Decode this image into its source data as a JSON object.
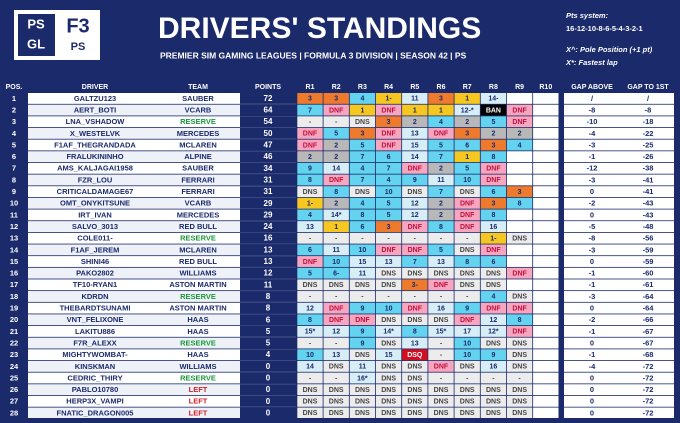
{
  "header": {
    "logo_left": [
      "PS",
      "GL"
    ],
    "logo_right": [
      "F3",
      "PS"
    ],
    "title": "DRIVERS' STANDINGS",
    "subtitle": "PREMIER SIM GAMING LEAGUES | FORMULA 3 DIVISION | SEASON 42 | PS",
    "pts_label": "Pts system:",
    "pts_system": "16-12-10-8-6-5-4-3-2-1",
    "notes": [
      "X^: Pole Position (+1 pt)",
      "X*: Fastest lap"
    ]
  },
  "table": {
    "columns": [
      "POS.",
      "DRIVER",
      "TEAM",
      "POINTS",
      "R1",
      "R2",
      "R3",
      "R4",
      "R5",
      "R6",
      "R7",
      "R8",
      "R9",
      "R10",
      "GAP ABOVE",
      "GAP TO 1ST"
    ],
    "rows": [
      {
        "pos": 1,
        "driver": "GALTZU123",
        "team": "SAUBER",
        "points": 72,
        "races": [
          "3",
          "3",
          "4",
          "1-",
          "11",
          "3",
          "1",
          "14-"
        ],
        "gap_above": "/",
        "gap_first": "/"
      },
      {
        "pos": 2,
        "driver": "AERT_BOTI",
        "team": "VCARB",
        "points": 64,
        "races": [
          "7",
          "DNF",
          "1",
          "DNF",
          "1",
          "1",
          "12-*",
          "BAN",
          "DNF"
        ],
        "gap_above": "-8",
        "gap_first": "-8"
      },
      {
        "pos": 3,
        "driver": "LNA_VSHADOW",
        "team": "RESERVE",
        "points": 54,
        "races": [
          "-",
          "-",
          "DNS",
          "3",
          "2",
          "4",
          "2",
          "5",
          "DNF"
        ],
        "gap_above": "-10",
        "gap_first": "-18"
      },
      {
        "pos": 4,
        "driver": "X_WESTELVK",
        "team": "MERCEDES",
        "points": 50,
        "races": [
          "DNF",
          "5",
          "3",
          "DNF",
          "13",
          "DNF",
          "3",
          "2",
          "2"
        ],
        "gap_above": "-4",
        "gap_first": "-22"
      },
      {
        "pos": 5,
        "driver": "F1AF_THEGRANDADA",
        "team": "MCLAREN",
        "points": 47,
        "races": [
          "DNF",
          "2",
          "5",
          "DNF",
          "15",
          "5",
          "6",
          "3",
          "4"
        ],
        "gap_above": "-3",
        "gap_first": "-25"
      },
      {
        "pos": 6,
        "driver": "FRALUKININHO",
        "team": "ALPINE",
        "points": 46,
        "races": [
          "2",
          "2",
          "7",
          "6",
          "14",
          "7",
          "1",
          "8"
        ],
        "gap_above": "-1",
        "gap_first": "-26"
      },
      {
        "pos": 7,
        "driver": "AMS_KALJAGAI1958",
        "team": "SAUBER",
        "points": 34,
        "races": [
          "9",
          "14",
          "4",
          "7",
          "DNF",
          "2",
          "5",
          "DNF"
        ],
        "gap_above": "-12",
        "gap_first": "-38"
      },
      {
        "pos": 8,
        "driver": "FZR_LOU",
        "team": "FERRARI",
        "points": 31,
        "races": [
          "8",
          "DNF",
          "7",
          "4",
          "9",
          "11",
          "10",
          "DNF"
        ],
        "gap_above": "-3",
        "gap_first": "-41"
      },
      {
        "pos": 9,
        "driver": "CRITICALDAMAGE67",
        "team": "FERRARI",
        "points": 31,
        "races": [
          "DNS",
          "8",
          "DNS",
          "10",
          "DNS",
          "7",
          "DNS",
          "6",
          "3"
        ],
        "gap_above": "0",
        "gap_first": "-41"
      },
      {
        "pos": 10,
        "driver": "OMT_ONYKITSUNE",
        "team": "VCARB",
        "points": 29,
        "races": [
          "1-",
          "2",
          "4",
          "5",
          "12",
          "2",
          "DNF",
          "3",
          "8"
        ],
        "gap_above": "-2",
        "gap_first": "-43"
      },
      {
        "pos": 11,
        "driver": "IRT_IVAN",
        "team": "MERCEDES",
        "points": 29,
        "races": [
          "4",
          "14*",
          "8",
          "5",
          "12",
          "2",
          "DNF",
          "8"
        ],
        "gap_above": "0",
        "gap_first": "-43"
      },
      {
        "pos": 12,
        "driver": "SALVO_3013",
        "team": "RED BULL",
        "points": 24,
        "races": [
          "13",
          "1",
          "6",
          "3",
          "DNF",
          "8",
          "DNF",
          "16"
        ],
        "gap_above": "-5",
        "gap_first": "-48"
      },
      {
        "pos": 13,
        "driver": "COLE011-",
        "team": "RESERVE",
        "points": 16,
        "races": [
          "-",
          "-",
          "-",
          "-",
          "-",
          "-",
          "-",
          "1-",
          "DNS"
        ],
        "gap_above": "-8",
        "gap_first": "-56"
      },
      {
        "pos": 14,
        "driver": "F1AF_JEREM",
        "team": "MCLAREN",
        "points": 13,
        "races": [
          "6",
          "11",
          "10",
          "DNF",
          "DNF",
          "5",
          "DNS",
          "DNF"
        ],
        "gap_above": "-3",
        "gap_first": "-59"
      },
      {
        "pos": 15,
        "driver": "SHINI46",
        "team": "RED BULL",
        "points": 13,
        "races": [
          "DNF",
          "10",
          "15",
          "13",
          "7",
          "13",
          "8",
          "6"
        ],
        "gap_above": "0",
        "gap_first": "-59"
      },
      {
        "pos": 16,
        "driver": "PAKO2802",
        "team": "WILLIAMS",
        "points": 12,
        "races": [
          "5",
          "6-",
          "11",
          "DNS",
          "DNS",
          "DNS",
          "DNS",
          "DNS",
          "DNF"
        ],
        "gap_above": "-1",
        "gap_first": "-60"
      },
      {
        "pos": 17,
        "driver": "TF10-RYAN1",
        "team": "ASTON MARTIN",
        "points": 11,
        "races": [
          "DNS",
          "DNS",
          "DNS",
          "DNS",
          "3-",
          "DNF",
          "DNS",
          "DNS"
        ],
        "gap_above": "-1",
        "gap_first": "-61"
      },
      {
        "pos": 18,
        "driver": "KDRDN",
        "team": "RESERVE",
        "points": 8,
        "races": [
          "-",
          "-",
          "-",
          "-",
          "-",
          "-",
          "-",
          "4",
          "DNS"
        ],
        "gap_above": "-3",
        "gap_first": "-64"
      },
      {
        "pos": 19,
        "driver": "THEBARDTSUNAMI",
        "team": "ASTON MARTIN",
        "points": 8,
        "races": [
          "12",
          "DNF",
          "9",
          "10",
          "DNF",
          "16",
          "9",
          "DNF",
          "DNF"
        ],
        "gap_above": "0",
        "gap_first": "-64"
      },
      {
        "pos": 20,
        "driver": "VNT_FELIXONE",
        "team": "HAAS",
        "points": 6,
        "races": [
          "8",
          "DNF",
          "DNF",
          "DNS",
          "DNS",
          "DNS",
          "DNF",
          "12",
          "8"
        ],
        "gap_above": "-2",
        "gap_first": "-66"
      },
      {
        "pos": 21,
        "driver": "LAKITU886",
        "team": "HAAS",
        "points": 5,
        "races": [
          "15*",
          "12",
          "9",
          "14*",
          "8",
          "15*",
          "17",
          "12*",
          "DNF"
        ],
        "gap_above": "-1",
        "gap_first": "-67"
      },
      {
        "pos": 22,
        "driver": "F7R_ALEXX",
        "team": "RESERVE",
        "points": 5,
        "races": [
          "-",
          "-",
          "9",
          "DNS",
          "13",
          "-",
          "10",
          "DNS",
          "DNS"
        ],
        "gap_above": "0",
        "gap_first": "-67"
      },
      {
        "pos": 23,
        "driver": "MIGHTYWOMBAT-",
        "team": "HAAS",
        "points": 4,
        "races": [
          "10",
          "13",
          "DNS",
          "15",
          "DSQ",
          "-",
          "10",
          "9",
          "DNS"
        ],
        "gap_above": "-1",
        "gap_first": "-68"
      },
      {
        "pos": 24,
        "driver": "KINSKMAN",
        "team": "WILLIAMS",
        "points": 0,
        "races": [
          "14",
          "DNS",
          "11",
          "DNS",
          "DNS",
          "DNF",
          "DNS",
          "16",
          "DNS"
        ],
        "gap_above": "-4",
        "gap_first": "-72"
      },
      {
        "pos": 25,
        "driver": "CEDRIC_THIRY",
        "team": "RESERVE",
        "points": 0,
        "races": [
          "-",
          "-",
          "16*",
          "DNS",
          "DNS",
          "-",
          "-",
          "-",
          "-"
        ],
        "gap_above": "0",
        "gap_first": "-72"
      },
      {
        "pos": 26,
        "driver": "PABLO10780",
        "team": "LEFT",
        "points": 0,
        "races": [
          "DNS",
          "DNS",
          "DNS",
          "DNS",
          "DNS",
          "DNS",
          "DNS",
          "DNS",
          "DNS"
        ],
        "gap_above": "0",
        "gap_first": "-72"
      },
      {
        "pos": 27,
        "driver": "HERP3X_VAMPI",
        "team": "LEFT",
        "points": 0,
        "races": [
          "DNS",
          "DNS",
          "DNS",
          "DNS",
          "DNS",
          "DNS",
          "DNS",
          "DNS",
          "DNS"
        ],
        "gap_above": "0",
        "gap_first": "-72"
      },
      {
        "pos": 28,
        "driver": "FNATIC_DRAGON005",
        "team": "LEFT",
        "points": 0,
        "races": [
          "DNS",
          "DNS",
          "DNS",
          "DNS",
          "DNS",
          "DNS",
          "DNS",
          "DNS",
          "DNS"
        ],
        "gap_above": "0",
        "gap_first": "-72"
      }
    ]
  }
}
